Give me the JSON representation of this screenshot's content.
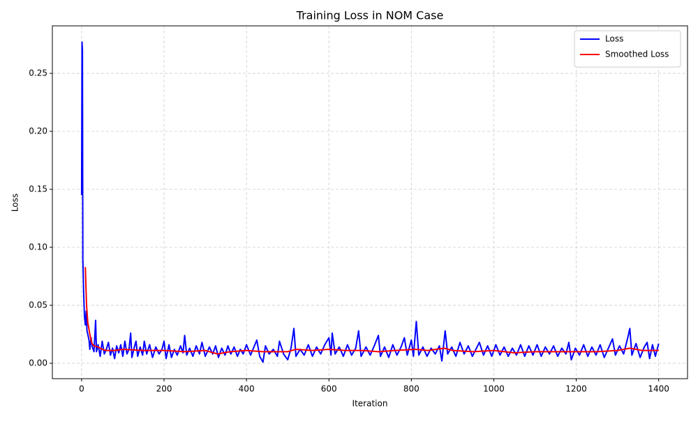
{
  "chart_data": {
    "type": "line",
    "title": "Training Loss in NOM Case",
    "x_label": "Iteration",
    "y_label": "Loss",
    "xlim": [
      -71,
      1470
    ],
    "ylim": [
      -0.0133,
      0.291
    ],
    "xticks": [
      0,
      200,
      400,
      600,
      800,
      1000,
      1200,
      1400
    ],
    "yticks": [
      {
        "value": 0,
        "label": "0.00"
      },
      {
        "value": 0.05,
        "label": "0.05"
      },
      {
        "value": 0.1,
        "label": "0.10"
      },
      {
        "value": 0.15,
        "label": "0.15"
      },
      {
        "value": 0.2,
        "label": "0.20"
      },
      {
        "value": 0.25,
        "label": "0.25"
      }
    ],
    "grid": true,
    "legend": "upper right",
    "series": [
      {
        "name": "Loss",
        "color": "#0000ff",
        "x": [
          0,
          1,
          2,
          3,
          5,
          7,
          9,
          11,
          13,
          15,
          18,
          20,
          23,
          26,
          30,
          34,
          36,
          40,
          45,
          50,
          55,
          60,
          65,
          70,
          75,
          80,
          85,
          90,
          95,
          100,
          105,
          110,
          115,
          119,
          122,
          128,
          132,
          136,
          142,
          148,
          152,
          158,
          165,
          172,
          180,
          188,
          195,
          200,
          205,
          212,
          218,
          225,
          232,
          240,
          246,
          250,
          255,
          262,
          270,
          278,
          286,
          292,
          300,
          310,
          318,
          325,
          332,
          340,
          348,
          355,
          362,
          370,
          378,
          385,
          392,
          400,
          410,
          418,
          425,
          432,
          440,
          446,
          455,
          465,
          475,
          480,
          490,
          500,
          508,
          515,
          520,
          530,
          540,
          550,
          560,
          570,
          580,
          590,
          600,
          605,
          608,
          615,
          625,
          635,
          645,
          655,
          665,
          672,
          678,
          690,
          700,
          710,
          720,
          725,
          735,
          745,
          755,
          765,
          775,
          783,
          790,
          800,
          805,
          812,
          818,
          828,
          838,
          848,
          858,
          868,
          874,
          882,
          888,
          898,
          908,
          918,
          928,
          938,
          948,
          958,
          965,
          975,
          985,
          995,
          1005,
          1015,
          1025,
          1035,
          1045,
          1055,
          1065,
          1075,
          1085,
          1095,
          1105,
          1115,
          1125,
          1135,
          1145,
          1155,
          1165,
          1175,
          1182,
          1188,
          1198,
          1208,
          1218,
          1228,
          1238,
          1248,
          1258,
          1268,
          1278,
          1288,
          1295,
          1305,
          1315,
          1325,
          1330,
          1335,
          1345,
          1355,
          1365,
          1372,
          1378,
          1385,
          1392,
          1400
        ],
        "values": [
          0.145,
          0.277,
          0.27,
          0.09,
          0.06,
          0.04,
          0.033,
          0.045,
          0.028,
          0.025,
          0.02,
          0.012,
          0.022,
          0.014,
          0.01,
          0.037,
          0.01,
          0.016,
          0.006,
          0.019,
          0.008,
          0.012,
          0.018,
          0.007,
          0.013,
          0.004,
          0.015,
          0.009,
          0.016,
          0.006,
          0.019,
          0.008,
          0.012,
          0.026,
          0.005,
          0.014,
          0.019,
          0.006,
          0.014,
          0.007,
          0.019,
          0.008,
          0.016,
          0.005,
          0.014,
          0.008,
          0.012,
          0.019,
          0.004,
          0.016,
          0.005,
          0.012,
          0.007,
          0.015,
          0.009,
          0.024,
          0.007,
          0.013,
          0.006,
          0.015,
          0.008,
          0.018,
          0.006,
          0.014,
          0.008,
          0.015,
          0.005,
          0.013,
          0.007,
          0.015,
          0.008,
          0.014,
          0.006,
          0.012,
          0.008,
          0.016,
          0.007,
          0.014,
          0.02,
          0.006,
          0.001,
          0.015,
          0.008,
          0.012,
          0.006,
          0.019,
          0.008,
          0.003,
          0.013,
          0.03,
          0.006,
          0.012,
          0.007,
          0.016,
          0.006,
          0.014,
          0.008,
          0.016,
          0.022,
          0.007,
          0.026,
          0.008,
          0.014,
          0.006,
          0.016,
          0.007,
          0.013,
          0.028,
          0.006,
          0.014,
          0.007,
          0.015,
          0.024,
          0.006,
          0.014,
          0.005,
          0.016,
          0.007,
          0.014,
          0.022,
          0.007,
          0.02,
          0.006,
          0.036,
          0.007,
          0.014,
          0.006,
          0.013,
          0.008,
          0.015,
          0.002,
          0.028,
          0.008,
          0.014,
          0.006,
          0.018,
          0.008,
          0.015,
          0.006,
          0.013,
          0.018,
          0.007,
          0.015,
          0.006,
          0.016,
          0.007,
          0.014,
          0.006,
          0.013,
          0.007,
          0.016,
          0.006,
          0.015,
          0.007,
          0.016,
          0.006,
          0.014,
          0.008,
          0.015,
          0.006,
          0.013,
          0.008,
          0.018,
          0.003,
          0.013,
          0.007,
          0.016,
          0.006,
          0.014,
          0.007,
          0.016,
          0.005,
          0.013,
          0.021,
          0.007,
          0.015,
          0.008,
          0.022,
          0.03,
          0.007,
          0.017,
          0.005,
          0.014,
          0.018,
          0.004,
          0.016,
          0.006,
          0.017
        ]
      },
      {
        "name": "Smoothed Loss",
        "color": "#ff0000",
        "x": [
          9,
          12,
          15,
          20,
          25,
          30,
          40,
          50,
          60,
          80,
          100,
          150,
          200,
          250,
          300,
          330,
          360,
          400,
          440,
          500,
          520,
          560,
          600,
          640,
          680,
          720,
          760,
          810,
          840,
          880,
          900,
          950,
          1000,
          1050,
          1100,
          1150,
          1200,
          1250,
          1300,
          1330,
          1360,
          1400
        ],
        "values": [
          0.083,
          0.05,
          0.035,
          0.025,
          0.017,
          0.015,
          0.014,
          0.012,
          0.011,
          0.011,
          0.012,
          0.011,
          0.011,
          0.01,
          0.011,
          0.008,
          0.01,
          0.011,
          0.01,
          0.01,
          0.012,
          0.011,
          0.012,
          0.011,
          0.011,
          0.01,
          0.011,
          0.012,
          0.011,
          0.013,
          0.011,
          0.01,
          0.011,
          0.009,
          0.01,
          0.01,
          0.01,
          0.01,
          0.011,
          0.013,
          0.011,
          0.011
        ]
      }
    ]
  }
}
